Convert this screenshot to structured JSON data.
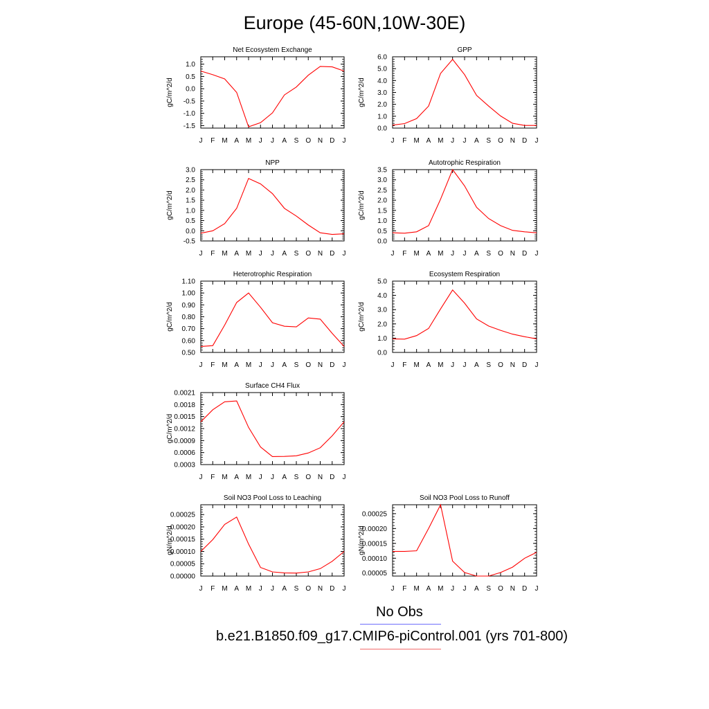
{
  "title": "Europe (45-60N,10W-30E)",
  "colors": {
    "series": "#ff0000",
    "obs_line": "#6d6dfb",
    "model_line": "#f26b6b",
    "axis": "#000000"
  },
  "legend": {
    "obs_label": "No Obs",
    "model_label": "b.e21.B1850.f09_g17.CMIP6-piControl.001 (yrs 701-800)"
  },
  "chart_data": [
    {
      "type": "line",
      "title": "Net Ecosystem Exchange",
      "ylabel": "gC/m^2/d",
      "categories": [
        "J",
        "F",
        "M",
        "A",
        "M",
        "J",
        "J",
        "A",
        "S",
        "O",
        "N",
        "D",
        "J"
      ],
      "ylim": [
        -1.6,
        1.3
      ],
      "yticks": [
        -1.5,
        -1.0,
        -0.5,
        0.0,
        0.5,
        1.0
      ],
      "ytick_labels": [
        "-1.5",
        "-1.0",
        "-0.5",
        "0.0",
        "0.5",
        "1.0"
      ],
      "values": [
        0.72,
        0.57,
        0.4,
        -0.15,
        -1.55,
        -1.38,
        -0.98,
        -0.25,
        0.07,
        0.55,
        0.91,
        0.89,
        0.72
      ]
    },
    {
      "type": "line",
      "title": "GPP",
      "ylabel": "gC/m^2/d",
      "categories": [
        "J",
        "F",
        "M",
        "A",
        "M",
        "J",
        "J",
        "A",
        "S",
        "O",
        "N",
        "D",
        "J"
      ],
      "ylim": [
        0.0,
        6.0
      ],
      "yticks": [
        0.0,
        1.0,
        2.0,
        3.0,
        4.0,
        5.0,
        6.0
      ],
      "ytick_labels": [
        "0.0",
        "1.0",
        "2.0",
        "3.0",
        "4.0",
        "5.0",
        "6.0"
      ],
      "values": [
        0.25,
        0.38,
        0.8,
        1.85,
        4.6,
        5.78,
        4.5,
        2.75,
        1.85,
        1.02,
        0.4,
        0.22,
        0.22
      ]
    },
    {
      "type": "line",
      "title": "NPP",
      "ylabel": "gC/m^2/d",
      "categories": [
        "J",
        "F",
        "M",
        "A",
        "M",
        "J",
        "J",
        "A",
        "S",
        "O",
        "N",
        "D",
        "J"
      ],
      "ylim": [
        -0.5,
        3.0
      ],
      "yticks": [
        -0.5,
        0.0,
        0.5,
        1.0,
        1.5,
        2.0,
        2.5,
        3.0
      ],
      "ytick_labels": [
        "-0.5",
        "0.0",
        "0.5",
        "1.0",
        "1.5",
        "2.0",
        "2.5",
        "3.0"
      ],
      "values": [
        -0.12,
        0.0,
        0.35,
        1.1,
        2.57,
        2.3,
        1.82,
        1.1,
        0.72,
        0.28,
        -0.1,
        -0.18,
        -0.15
      ]
    },
    {
      "type": "line",
      "title": "Autotrophic Respiration",
      "ylabel": "gC/m^2/d",
      "categories": [
        "J",
        "F",
        "M",
        "A",
        "M",
        "J",
        "J",
        "A",
        "S",
        "O",
        "N",
        "D",
        "J"
      ],
      "ylim": [
        0.0,
        3.5
      ],
      "yticks": [
        0.0,
        0.5,
        1.0,
        1.5,
        2.0,
        2.5,
        3.0,
        3.5
      ],
      "ytick_labels": [
        "0.0",
        "0.5",
        "1.0",
        "1.5",
        "2.0",
        "2.5",
        "3.0",
        "3.5"
      ],
      "values": [
        0.4,
        0.38,
        0.45,
        0.75,
        2.05,
        3.5,
        2.7,
        1.65,
        1.1,
        0.75,
        0.52,
        0.45,
        0.4
      ]
    },
    {
      "type": "line",
      "title": "Heterotrophic Respiration",
      "ylabel": "gC/m^2/d",
      "categories": [
        "J",
        "F",
        "M",
        "A",
        "M",
        "J",
        "J",
        "A",
        "S",
        "O",
        "N",
        "D",
        "J"
      ],
      "ylim": [
        0.5,
        1.1
      ],
      "yticks": [
        0.5,
        0.6,
        0.7,
        0.8,
        0.9,
        1.0,
        1.1
      ],
      "ytick_labels": [
        "0.50",
        "0.60",
        "0.70",
        "0.80",
        "0.90",
        "1.00",
        "1.10"
      ],
      "values": [
        0.55,
        0.557,
        0.73,
        0.92,
        1.0,
        0.88,
        0.75,
        0.72,
        0.715,
        0.79,
        0.78,
        0.66,
        0.55
      ]
    },
    {
      "type": "line",
      "title": "Ecosystem Respiration",
      "ylabel": "gC/m^2/d",
      "categories": [
        "J",
        "F",
        "M",
        "A",
        "M",
        "J",
        "J",
        "A",
        "S",
        "O",
        "N",
        "D",
        "J"
      ],
      "ylim": [
        0.0,
        5.0
      ],
      "yticks": [
        0.0,
        1.0,
        2.0,
        3.0,
        4.0,
        5.0
      ],
      "ytick_labels": [
        "0.0",
        "1.0",
        "2.0",
        "3.0",
        "4.0",
        "5.0"
      ],
      "values": [
        0.95,
        0.93,
        1.18,
        1.68,
        3.05,
        4.38,
        3.45,
        2.35,
        1.85,
        1.55,
        1.28,
        1.1,
        0.95
      ]
    },
    {
      "type": "line",
      "title": "Surface CH4 Flux",
      "ylabel": "gC/m^2/d",
      "categories": [
        "J",
        "F",
        "M",
        "A",
        "M",
        "J",
        "J",
        "A",
        "S",
        "O",
        "N",
        "D",
        "J"
      ],
      "ylim": [
        0.0003,
        0.0021
      ],
      "yticks": [
        0.0003,
        0.0006,
        0.0009,
        0.0012,
        0.0015,
        0.0018,
        0.0021
      ],
      "ytick_labels": [
        "0.0003",
        "0.0006",
        "0.0009",
        "0.0012",
        "0.0015",
        "0.0018",
        "0.0021"
      ],
      "values": [
        0.00137,
        0.00167,
        0.00187,
        0.00189,
        0.00123,
        0.00074,
        0.0005,
        0.000505,
        0.00052,
        0.00059,
        0.00072,
        0.00102,
        0.00137
      ]
    },
    {
      "type": "line",
      "title": "Soil NO3 Pool Loss to Leaching",
      "ylabel": "gN/m^2/d",
      "categories": [
        "J",
        "F",
        "M",
        "A",
        "M",
        "J",
        "J",
        "A",
        "S",
        "O",
        "N",
        "D",
        "J"
      ],
      "ylim": [
        0.0,
        0.00029
      ],
      "yticks": [
        0.0,
        5e-05,
        0.0001,
        0.00015,
        0.0002,
        0.00025
      ],
      "ytick_labels": [
        "0.00000",
        "0.00005",
        "0.00010",
        "0.00015",
        "0.00020",
        "0.00025"
      ],
      "values": [
        0.0001,
        0.000148,
        0.00021,
        0.00024,
        0.00013,
        3.5e-05,
        1.7e-05,
        1.3e-05,
        1.2e-05,
        1.7e-05,
        3e-05,
        6e-05,
        0.0001
      ]
    },
    {
      "type": "line",
      "title": "Soil NO3 Pool Loss to Runoff",
      "ylabel": "gN/m^2/d",
      "categories": [
        "J",
        "F",
        "M",
        "A",
        "M",
        "J",
        "J",
        "A",
        "S",
        "O",
        "N",
        "D",
        "J"
      ],
      "ylim": [
        4e-05,
        0.00028
      ],
      "yticks": [
        5e-05,
        0.0001,
        0.00015,
        0.0002,
        0.00025
      ],
      "ytick_labels": [
        "0.00005",
        "0.00010",
        "0.00015",
        "0.00020",
        "0.00025"
      ],
      "values": [
        0.000123,
        0.000123,
        0.000125,
        0.0002,
        0.00028,
        9e-05,
        5.2e-05,
        4e-05,
        4e-05,
        5.2e-05,
        7e-05,
        0.0001,
        0.00012
      ]
    }
  ]
}
